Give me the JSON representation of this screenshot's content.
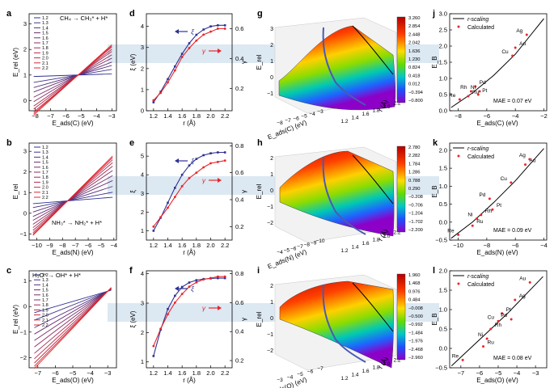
{
  "figure": {
    "rows": [
      {
        "label_a": "a",
        "label_d": "d",
        "label_g": "g",
        "label_j": "j",
        "a": {
          "title": "CH₄ → CH₃* + H*",
          "xlabel": "E_ads(C) (eV)",
          "ylabel": "E_rel (eV)",
          "xticks": [
            "−8",
            "−7",
            "−6",
            "−5",
            "−4",
            "−3"
          ],
          "yticks": [
            "0",
            "1",
            "2",
            "3"
          ],
          "xlim": [
            -8.4,
            -2.7
          ],
          "ylim": [
            -0.4,
            3.4
          ],
          "legend": [
            "1.2",
            "1.3",
            "1.4",
            "1.5",
            "1.6",
            "1.7",
            "1.8",
            "1.9",
            "2.0",
            "2.1",
            "2.2"
          ],
          "pivot": [
            -5.2,
            1.0
          ],
          "slopes": [
            0.02,
            0.1,
            0.17,
            0.23,
            0.3,
            0.36,
            0.42,
            0.46,
            0.5,
            0.52,
            0.54
          ]
        },
        "d": {
          "xlabel": "r (Å)",
          "ylabel_left": "ξ (eV)",
          "ylabel_right": "γ",
          "xticks": [
            "1.2",
            "1.4",
            "1.6",
            "1.8",
            "2.0",
            "2.2"
          ],
          "yticks_left": [
            "0",
            "1",
            "2",
            "3",
            "4"
          ],
          "yticks_right": [
            "0.2",
            "0.4",
            "0.6"
          ],
          "xlim": [
            1.1,
            2.3
          ],
          "ylim_left": [
            0,
            4.6
          ],
          "ylim_right": [
            0.05,
            0.7
          ],
          "r": [
            1.2,
            1.3,
            1.4,
            1.5,
            1.6,
            1.7,
            1.8,
            1.9,
            2.0,
            2.1,
            2.2
          ],
          "xi": [
            0.4,
            0.9,
            1.5,
            2.1,
            2.7,
            3.2,
            3.6,
            3.85,
            4.0,
            4.05,
            4.05
          ],
          "gamma": [
            0.12,
            0.17,
            0.24,
            0.32,
            0.41,
            0.47,
            0.52,
            0.56,
            0.58,
            0.6,
            0.6
          ],
          "xi_label": "ξ",
          "gamma_label": "γ"
        },
        "g": {
          "xlabel": "E_ads(C) (eV)",
          "ylabel": "E_rel",
          "rlabel": "r (Å)",
          "colorbar": [
            "3.260",
            "2.854",
            "2.448",
            "2.042",
            "1.636",
            "1.230",
            "0.824",
            "0.418",
            "0.012",
            "−0.394",
            "−0.800"
          ],
          "zticks": [
            "3",
            "2",
            "1",
            "0",
            "−1"
          ],
          "xticks": [
            "−8",
            "−7",
            "−6",
            "−5",
            "−4",
            "−3"
          ],
          "rticks": [
            "1.2",
            "1.4",
            "1.6",
            "1.8",
            "2.0",
            "2.2"
          ]
        },
        "j": {
          "xlabel": "E_ads(C) (eV)",
          "ylabel": "E_B",
          "mae": "MAE = 0.07 eV",
          "legend_line": "r-scaling",
          "legend_points": "Calculated",
          "xticks": [
            "−8",
            "−6",
            "−4",
            "−2"
          ],
          "yticks": [
            "0.0",
            "0.5",
            "1.0",
            "1.5",
            "2.0",
            "2.5",
            "3.0"
          ],
          "xlim": [
            -8.6,
            -1.8
          ],
          "ylim": [
            0,
            3.0
          ],
          "curve_x": [
            -8.5,
            -7,
            -5.5,
            -4,
            -3,
            -2
          ],
          "curve_y": [
            0.1,
            0.55,
            1.1,
            1.75,
            2.3,
            2.85
          ],
          "points": [
            {
              "name": "Re",
              "x": -7.9,
              "y": 0.35
            },
            {
              "name": "Ru",
              "x": -7.3,
              "y": 0.45
            },
            {
              "name": "Rh",
              "x": -7.1,
              "y": 0.6
            },
            {
              "name": "Pd",
              "x": -6.8,
              "y": 0.75
            },
            {
              "name": "Ni",
              "x": -6.5,
              "y": 0.6
            },
            {
              "name": "Pt",
              "x": -6.6,
              "y": 0.5
            },
            {
              "name": "Cu",
              "x": -4.2,
              "y": 1.7
            },
            {
              "name": "Au",
              "x": -4.0,
              "y": 1.95
            },
            {
              "name": "Ag",
              "x": -3.2,
              "y": 2.35
            }
          ]
        }
      },
      {
        "label_a": "b",
        "label_d": "e",
        "label_g": "h",
        "label_j": "k",
        "a": {
          "title": "NH₃* → NH₂* + H*",
          "xlabel": "E_ads(N) (eV)",
          "ylabel": "E_rel",
          "xticks": [
            "−10",
            "−9",
            "−8",
            "−7",
            "−6",
            "−5",
            "−4"
          ],
          "yticks": [
            "−1",
            "0",
            "1",
            "2",
            "3"
          ],
          "xlim": [
            -10.6,
            -3.8
          ],
          "ylim": [
            -1.3,
            3.4
          ],
          "legend": [
            "1.2",
            "1.3",
            "1.4",
            "1.5",
            "1.6",
            "1.7",
            "1.8",
            "1.9",
            "2.0",
            "2.1",
            "2.2"
          ],
          "pivot": [
            -7.6,
            0.6
          ],
          "slopes": [
            0.05,
            0.12,
            0.2,
            0.28,
            0.35,
            0.42,
            0.48,
            0.53,
            0.57,
            0.6,
            0.62
          ]
        },
        "d": {
          "xlabel": "r (Å)",
          "ylabel_left": "ξ",
          "ylabel_right": "γ",
          "xticks": [
            "1.2",
            "1.4",
            "1.6",
            "1.8",
            "2.0",
            "2.2"
          ],
          "yticks_left": [
            "1",
            "2",
            "3",
            "4",
            "5"
          ],
          "yticks_right": [
            "0.2",
            "0.4",
            "0.6",
            "0.8"
          ],
          "xlim": [
            1.1,
            2.3
          ],
          "ylim_left": [
            0.5,
            5.7
          ],
          "ylim_right": [
            0.1,
            0.82
          ],
          "r": [
            1.2,
            1.3,
            1.4,
            1.5,
            1.6,
            1.7,
            1.8,
            1.9,
            2.0,
            2.1,
            2.2
          ],
          "xi": [
            1.0,
            1.7,
            2.5,
            3.3,
            4.0,
            4.5,
            4.85,
            5.05,
            5.15,
            5.2,
            5.2
          ],
          "gamma": [
            0.2,
            0.27,
            0.34,
            0.42,
            0.5,
            0.56,
            0.6,
            0.64,
            0.67,
            0.68,
            0.69
          ],
          "xi_label": "ξ",
          "gamma_label": "γ"
        },
        "g": {
          "xlabel": "E_ads(N) (eV)",
          "ylabel": "E_rel",
          "rlabel": "r (Å)",
          "colorbar": [
            "2.780",
            "2.282",
            "1.784",
            "1.286",
            "0.788",
            "0.290",
            "−0.208",
            "−0.706",
            "−1.204",
            "−1.702",
            "−2.200"
          ],
          "zticks": [
            "2",
            "1",
            "0",
            "−1",
            "−2"
          ],
          "xticks": [
            "−4",
            "−5",
            "−6",
            "−7",
            "−8",
            "−9",
            "−10"
          ],
          "rticks": [
            "1.2",
            "1.4",
            "1.6",
            "1.8",
            "2.0",
            "2.2"
          ]
        },
        "j": {
          "xlabel": "E_ads(N) (eV)",
          "ylabel": "E_B",
          "mae": "MAE = 0.09 eV",
          "legend_line": "r-scaling",
          "legend_points": "Calculated",
          "xticks": [
            "−10",
            "−8",
            "−6",
            "−4"
          ],
          "yticks": [
            "−0.5",
            "0.0",
            "0.5",
            "1.0",
            "1.5",
            "2.0"
          ],
          "xlim": [
            -10.6,
            -3.8
          ],
          "ylim": [
            -0.5,
            2.2
          ],
          "curve_x": [
            -10.5,
            -9,
            -7.5,
            -6,
            -5,
            -4
          ],
          "curve_y": [
            -0.45,
            0.0,
            0.55,
            1.15,
            1.6,
            2.05
          ],
          "points": [
            {
              "name": "Re",
              "x": -10.0,
              "y": -0.35
            },
            {
              "name": "Ru",
              "x": -9.0,
              "y": -0.1
            },
            {
              "name": "Ni",
              "x": -8.7,
              "y": 0.1
            },
            {
              "name": "Rh",
              "x": -8.4,
              "y": 0.2
            },
            {
              "name": "Pd",
              "x": -7.8,
              "y": 0.65
            },
            {
              "name": "Pt",
              "x": -7.6,
              "y": 0.35
            },
            {
              "name": "Cu",
              "x": -6.3,
              "y": 1.1
            },
            {
              "name": "Au",
              "x": -5.3,
              "y": 1.6
            },
            {
              "name": "Ag",
              "x": -5.0,
              "y": 1.75
            }
          ]
        }
      },
      {
        "label_a": "c",
        "label_d": "f",
        "label_g": "i",
        "label_j": "l",
        "a": {
          "title": "H₃O* → OH* + H*",
          "xlabel": "E_ads(O) (eV)",
          "ylabel": "E_rel (eV)",
          "xticks": [
            "−7",
            "−6",
            "−5",
            "−4",
            "−3"
          ],
          "yticks": [
            "−2",
            "−1",
            "0",
            "1"
          ],
          "xlim": [
            -7.5,
            -2.5
          ],
          "ylim": [
            -2.4,
            1.4
          ],
          "legend": [
            "1.2",
            "1.3",
            "1.4",
            "1.5",
            "1.6",
            "1.7",
            "1.8",
            "1.9",
            "2.0",
            "2.1",
            "2.2"
          ],
          "pivot": [
            -3.0,
            0.6
          ],
          "slopes": [
            0.2,
            0.27,
            0.34,
            0.4,
            0.46,
            0.52,
            0.58,
            0.63,
            0.67,
            0.7,
            0.72
          ]
        },
        "d": {
          "xlabel": "r (Å)",
          "ylabel_left": "ξ (eV)",
          "ylabel_right": "γ",
          "xticks": [
            "1.2",
            "1.4",
            "1.6",
            "1.8",
            "2.0",
            "2.2"
          ],
          "yticks_left": [
            "1",
            "2",
            "3",
            "4"
          ],
          "yticks_right": [
            "0.2",
            "0.4",
            "0.6",
            "0.8"
          ],
          "xlim": [
            1.1,
            2.3
          ],
          "ylim_left": [
            0.8,
            4.1
          ],
          "ylim_right": [
            0.15,
            0.82
          ],
          "r": [
            1.2,
            1.3,
            1.4,
            1.5,
            1.6,
            1.7,
            1.8,
            1.9,
            2.0,
            2.1,
            2.2
          ],
          "xi": [
            1.2,
            2.1,
            2.8,
            3.25,
            3.55,
            3.7,
            3.78,
            3.82,
            3.84,
            3.85,
            3.85
          ],
          "gamma": [
            0.3,
            0.42,
            0.52,
            0.6,
            0.66,
            0.71,
            0.74,
            0.76,
            0.77,
            0.78,
            0.78
          ],
          "xi_label": "ξ",
          "gamma_label": "γ"
        },
        "g": {
          "xlabel": "E_ads(O) (eV)",
          "ylabel": "E_rel",
          "rlabel": "r (Å)",
          "colorbar": [
            "1.960",
            "1.468",
            "0.976",
            "0.484",
            "−0.008",
            "−0.500",
            "−0.992",
            "−1.484",
            "−1.976",
            "−2.468",
            "−2.960"
          ],
          "zticks": [
            "2",
            "1",
            "0",
            "−1",
            "−2"
          ],
          "xticks": [
            "−3",
            "−4",
            "−5",
            "−6",
            "−7"
          ],
          "rticks": [
            "1.2",
            "1.4",
            "1.6",
            "1.8",
            "2.0",
            "2.2"
          ]
        },
        "j": {
          "xlabel": "E_ads(O) (eV)",
          "ylabel": "E_B",
          "mae": "MAE = 0.08 eV",
          "legend_line": "r-scaling",
          "legend_points": "Calculated",
          "xticks": [
            "−7",
            "−6",
            "−5",
            "−4",
            "−3"
          ],
          "yticks": [
            "−0.5",
            "0.0",
            "0.5",
            "1.0",
            "1.5",
            "2.0"
          ],
          "xlim": [
            -7.6,
            -2.4
          ],
          "ylim": [
            -0.5,
            2.0
          ],
          "curve_x": [
            -7.5,
            -6.5,
            -5.5,
            -4.5,
            -3.5,
            -2.6
          ],
          "curve_y": [
            -0.45,
            0.0,
            0.45,
            0.9,
            1.4,
            1.85
          ],
          "points": [
            {
              "name": "Re",
              "x": -6.9,
              "y": -0.3
            },
            {
              "name": "Ru",
              "x": -5.8,
              "y": 0.05
            },
            {
              "name": "Ni",
              "x": -5.6,
              "y": 0.25
            },
            {
              "name": "Rh",
              "x": -5.4,
              "y": 0.5
            },
            {
              "name": "Cu",
              "x": -5.0,
              "y": 0.7
            },
            {
              "name": "Pt",
              "x": -4.8,
              "y": 0.9
            },
            {
              "name": "Pd",
              "x": -4.3,
              "y": 0.75
            },
            {
              "name": "Ag",
              "x": -4.1,
              "y": 1.25
            },
            {
              "name": "Au",
              "x": -3.3,
              "y": 1.7
            }
          ]
        }
      }
    ]
  },
  "chart_data": [
    {
      "type": "line",
      "panel": "a",
      "title": "CH₄ → CH₃* + H*",
      "xlabel": "E_ads(C) (eV)",
      "ylabel": "E_rel (eV)",
      "series_names": [
        "1.2",
        "1.3",
        "1.4",
        "1.5",
        "1.6",
        "1.7",
        "1.8",
        "1.9",
        "2.0",
        "2.1",
        "2.2"
      ]
    },
    {
      "type": "line",
      "panel": "d",
      "xlabel": "r (Å)",
      "ylabel": "ξ (eV)",
      "y2label": "γ",
      "x": [
        1.2,
        1.3,
        1.4,
        1.5,
        1.6,
        1.7,
        1.8,
        1.9,
        2.0,
        2.1,
        2.2
      ],
      "series": [
        {
          "name": "ξ",
          "values": [
            0.4,
            0.9,
            1.5,
            2.1,
            2.7,
            3.2,
            3.6,
            3.85,
            4.0,
            4.05,
            4.05
          ]
        },
        {
          "name": "γ",
          "values": [
            0.12,
            0.17,
            0.24,
            0.32,
            0.41,
            0.47,
            0.52,
            0.56,
            0.58,
            0.6,
            0.6
          ]
        }
      ]
    },
    {
      "type": "heatmap",
      "panel": "g",
      "zrange": [
        -0.8,
        3.26
      ]
    },
    {
      "type": "scatter",
      "panel": "j",
      "xlabel": "E_ads(C) (eV)",
      "ylabel": "E_B (eV)"
    },
    {
      "type": "line",
      "panel": "b",
      "title": "NH₃* → NH₂* + H*"
    },
    {
      "type": "line",
      "panel": "e"
    },
    {
      "type": "heatmap",
      "panel": "h",
      "zrange": [
        -2.2,
        2.78
      ]
    },
    {
      "type": "scatter",
      "panel": "k"
    },
    {
      "type": "line",
      "panel": "c",
      "title": "H₃O* → OH* + H*"
    },
    {
      "type": "line",
      "panel": "f"
    },
    {
      "type": "heatmap",
      "panel": "i",
      "zrange": [
        -2.96,
        1.96
      ]
    },
    {
      "type": "scatter",
      "panel": "l"
    }
  ],
  "colors": {
    "blue": "#2e3192",
    "red": "#e8262b",
    "band": "#dce8f2",
    "curve": "#000000"
  }
}
